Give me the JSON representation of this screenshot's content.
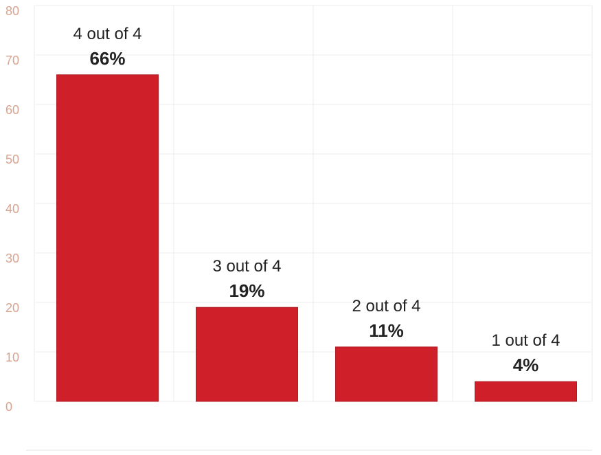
{
  "chart_data": {
    "type": "bar",
    "categories": [
      "4 out of 4",
      "3 out of 4",
      "2 out of 4",
      "1 out of 4"
    ],
    "values": [
      66,
      19,
      11,
      4
    ],
    "data_labels": [
      "66%",
      "19%",
      "11%",
      "4%"
    ],
    "yticks": [
      "0",
      "10",
      "20",
      "30",
      "40",
      "50",
      "60",
      "70",
      "80"
    ],
    "ylim": [
      0,
      80
    ],
    "grid": true,
    "legend": "none"
  },
  "colors": {
    "bar": "#cf1f28",
    "bar_edge": "#b01a22",
    "ytick": "#d9a48f",
    "grid": "#ececec",
    "label": "#222222"
  }
}
